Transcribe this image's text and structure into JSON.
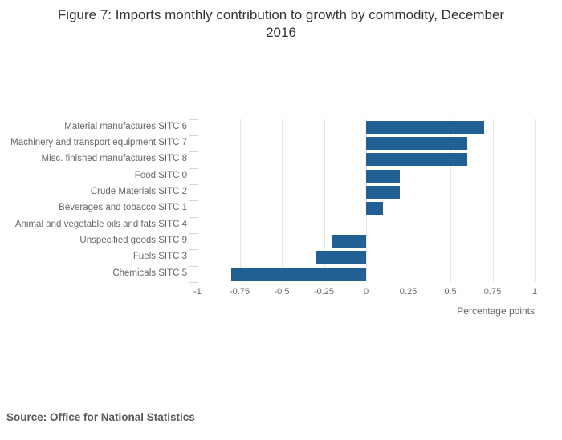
{
  "title": "Figure 7: Imports monthly contribution to growth by commodity, December 2016",
  "source_note": "Source: Office for National Statistics",
  "chart_data": {
    "type": "bar",
    "orientation": "horizontal",
    "title": "Figure 7: Imports monthly contribution to growth by commodity, December 2016",
    "categories": [
      "Material manufactures SITC 6",
      "Machinery and transport equipment SITC 7",
      "Misc. finished manufactures SITC 8",
      "Food SITC 0",
      "Crude Materials SITC 2",
      "Beverages and tobacco SITC 1",
      "Animal and vegetable oils and fats SITC 4",
      "Unspecified goods SITC 9",
      "Fuels SITC 3",
      "Chemicals SITC 5"
    ],
    "values": [
      0.7,
      0.6,
      0.6,
      0.2,
      0.2,
      0.1,
      0,
      -0.2,
      -0.3,
      -0.8
    ],
    "xlabel": "Percentage points",
    "ylabel": "",
    "xlim": [
      -1,
      1
    ],
    "xticks": [
      "-1",
      "-0.75",
      "-0.5",
      "-0.25",
      "0",
      "0.25",
      "0.5",
      "0.75",
      "1"
    ],
    "grid": true,
    "legend": "none",
    "colors": {
      "bar": "#206095",
      "axis_line": "#ccd6eb",
      "gridline": "#e6e6e6",
      "title_text": "#333333",
      "label_text": "#666666",
      "source_text": "#595959"
    }
  }
}
